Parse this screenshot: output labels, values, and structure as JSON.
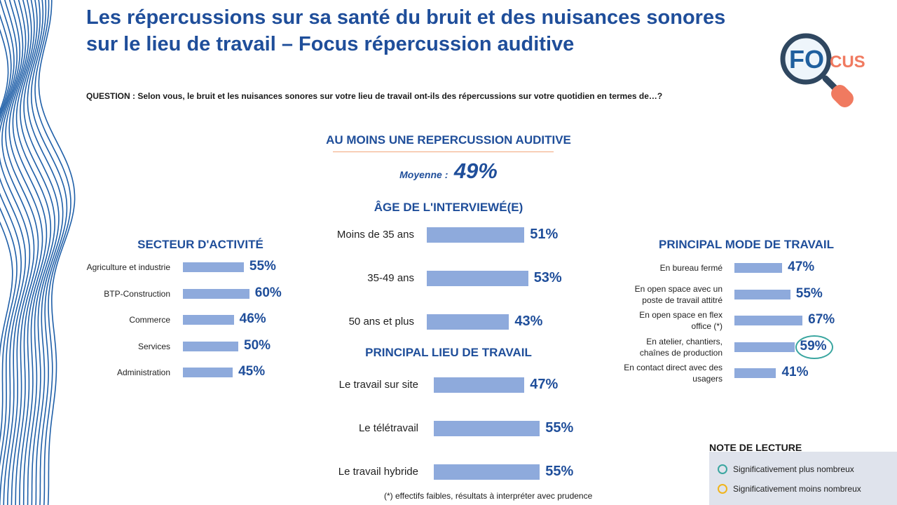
{
  "title": "Les répercussions sur sa santé du bruit et des nuisances sonores sur le lieu de travail – Focus répercussion auditive",
  "question": "QUESTION : Selon vous, le bruit et les nuisances sonores sur votre lieu de travail ont-ils des répercussions sur votre quotidien en termes de…?",
  "logo": {
    "fo": "FO",
    "cus": "CUS"
  },
  "main": {
    "heading": "AU MOINS UNE REPERCUSSION AUDITIVE",
    "moyenne_label": "Moyenne :",
    "moyenne_value": "49%"
  },
  "colors": {
    "bar": "#8eaadc",
    "title": "#1f4e9a",
    "plus": "#3aa6a0",
    "moins": "#f0b41c"
  },
  "chart_data": [
    {
      "type": "bar",
      "title": "SECTEUR D'ACTIVITÉ",
      "categories": [
        "Agriculture et industrie",
        "BTP-Construction",
        "Commerce",
        "Services",
        "Administration"
      ],
      "values": [
        55,
        60,
        46,
        50,
        45
      ],
      "labels": [
        "55%",
        "60%",
        "46%",
        "50%",
        "45%"
      ],
      "significance": [
        "",
        "",
        "",
        "",
        ""
      ]
    },
    {
      "type": "bar",
      "title": "ÂGE DE L'INTERVIEWÉ(E)",
      "categories": [
        "Moins de 35 ans",
        "35-49 ans",
        "50 ans et plus"
      ],
      "values": [
        51,
        53,
        43
      ],
      "labels": [
        "51%",
        "53%",
        "43%"
      ],
      "significance": [
        "",
        "",
        ""
      ]
    },
    {
      "type": "bar",
      "title": "PRINCIPAL LIEU DE TRAVAIL",
      "categories": [
        "Le travail sur site",
        "Le télétravail",
        "Le travail hybride"
      ],
      "values": [
        47,
        55,
        55
      ],
      "labels": [
        "47%",
        "55%",
        "55%"
      ],
      "significance": [
        "",
        "",
        ""
      ]
    },
    {
      "type": "bar",
      "title": "PRINCIPAL MODE DE TRAVAIL",
      "categories": [
        "En bureau fermé",
        "En open space avec un poste de travail attitré",
        "En open space en flex office (*)",
        "En atelier, chantiers, chaînes de production",
        "En contact direct avec des usagers"
      ],
      "values": [
        47,
        55,
        67,
        59,
        41
      ],
      "labels": [
        "47%",
        "55%",
        "67%",
        "59%",
        "41%"
      ],
      "significance": [
        "",
        "",
        "",
        "plus",
        ""
      ]
    }
  ],
  "footnote": "(*) effectifs faibles, résultats à interpréter avec prudence",
  "note": {
    "title": "NOTE DE LECTURE",
    "plus": "Significativement plus nombreux",
    "moins": "Significativement moins nombreux"
  }
}
